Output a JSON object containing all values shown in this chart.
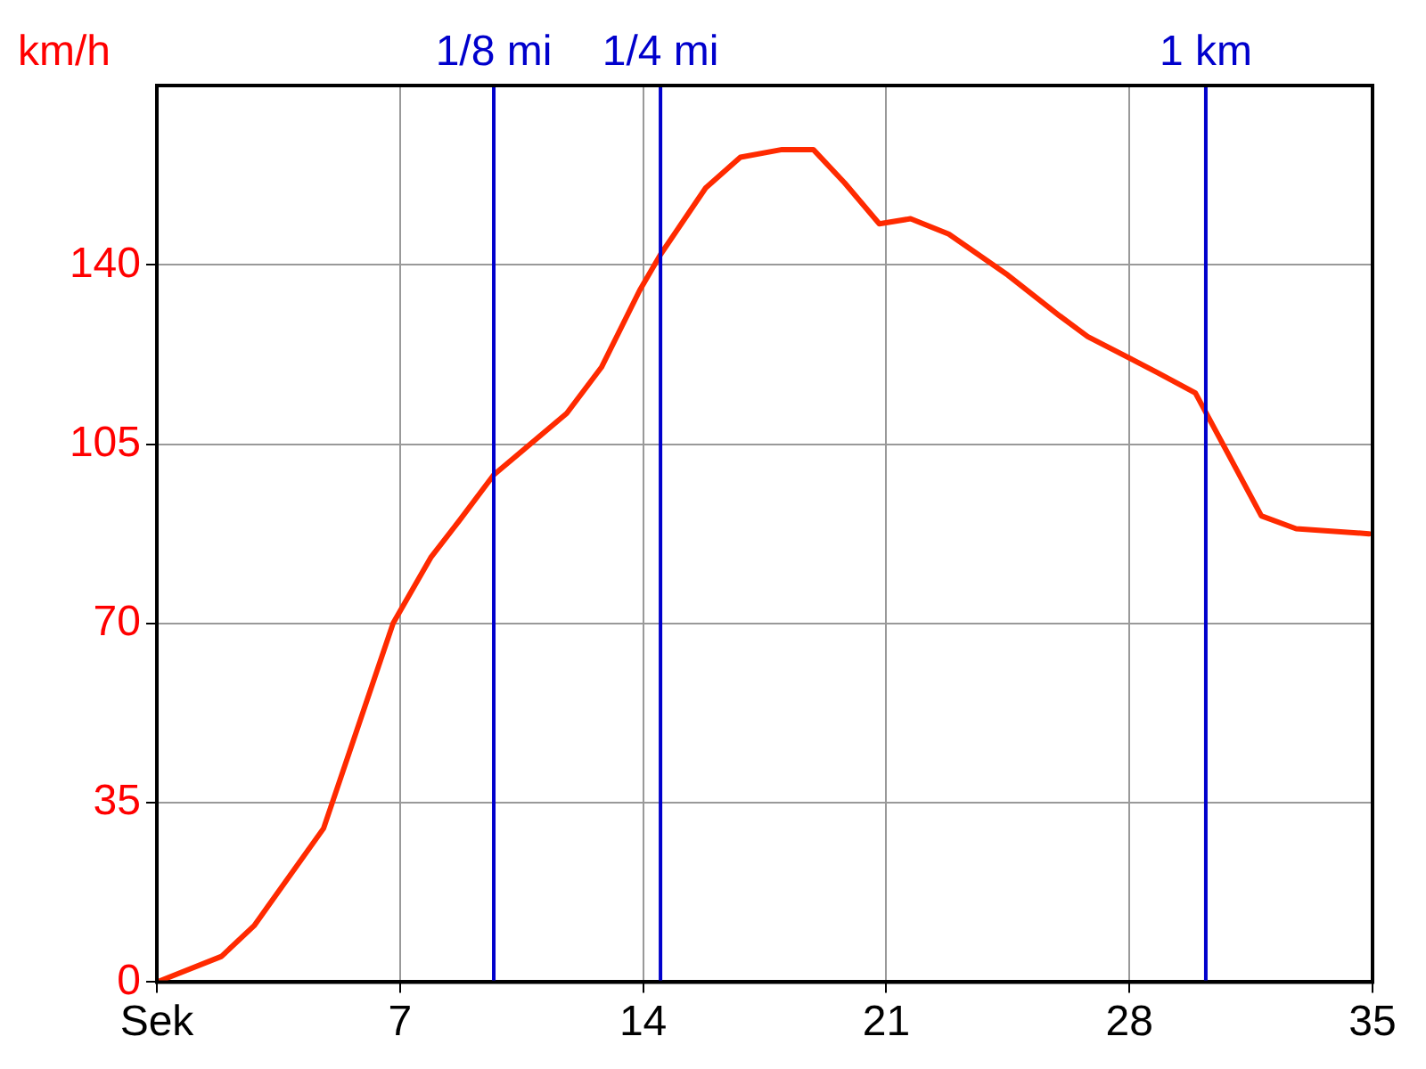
{
  "chart_data": {
    "type": "line",
    "ylabel": "km/h",
    "x": [
      0,
      1.86,
      2.8,
      4.8,
      6.8,
      7.9,
      8.7,
      9.7,
      11.8,
      12.8,
      13.9,
      14.5,
      15.8,
      16.8,
      18.0,
      18.9,
      19.8,
      20.8,
      21.7,
      22.8,
      24.5,
      26.0,
      26.8,
      28.8,
      29.9,
      31.8,
      32.8,
      34.9
    ],
    "series": [
      {
        "color": "#ff2a00",
        "values": [
          0,
          5,
          11,
          30,
          70,
          83,
          90,
          99,
          111,
          120,
          135,
          142,
          155,
          161,
          162.5,
          162.5,
          156,
          148,
          149,
          146,
          138,
          130,
          126,
          119,
          115,
          91,
          88.5,
          87.5
        ]
      }
    ],
    "xlim": [
      0,
      35
    ],
    "xticks": [
      {
        "value": 0,
        "label": "Sek"
      },
      7,
      14,
      21,
      28,
      35
    ],
    "ylim": [
      0,
      175
    ],
    "yticks": [
      0,
      35,
      70,
      105,
      140
    ],
    "ref_lines": [
      {
        "axis": "x",
        "value": 9.7,
        "label": "1/8 mi",
        "color": "#0000cc"
      },
      {
        "axis": "x",
        "value": 14.5,
        "label": "1/4 mi",
        "color": "#0000cc"
      },
      {
        "axis": "x",
        "value": 30.2,
        "label": "1 km",
        "color": "#0000cc"
      }
    ],
    "grid": true,
    "legend": false,
    "marker": "none",
    "line_style": "solid"
  }
}
